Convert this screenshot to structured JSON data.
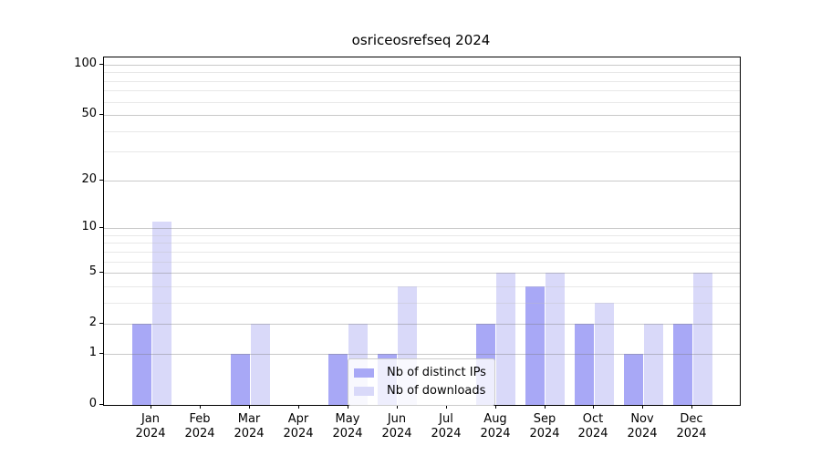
{
  "title": "osriceosrefseq 2024",
  "chart_data": {
    "type": "bar",
    "title": "osriceosrefseq 2024",
    "yscale": "log1p",
    "ylim": [
      0,
      110
    ],
    "grid": true,
    "months": [
      "Jan",
      "Feb",
      "Mar",
      "Apr",
      "May",
      "Jun",
      "Jul",
      "Aug",
      "Sep",
      "Oct",
      "Nov",
      "Dec"
    ],
    "year": "2024",
    "categories": [
      "Jan 2024",
      "Feb 2024",
      "Mar 2024",
      "Apr 2024",
      "May 2024",
      "Jun 2024",
      "Jul 2024",
      "Aug 2024",
      "Sep 2024",
      "Oct 2024",
      "Nov 2024",
      "Dec 2024"
    ],
    "series": [
      {
        "name": "Nb of distinct IPs",
        "color": "#a8a8f6",
        "values": [
          2,
          0,
          1,
          0,
          1,
          1,
          0,
          2,
          4,
          2,
          1,
          2
        ]
      },
      {
        "name": "Nb of downloads",
        "color": "#d9d9f9",
        "values": [
          11,
          0,
          2,
          0,
          2,
          4,
          0,
          5,
          5,
          3,
          2,
          5
        ]
      }
    ],
    "y_major_ticks": [
      0,
      1,
      2,
      5,
      10,
      20,
      50,
      100
    ],
    "y_minor_ticks": [
      3,
      4,
      6,
      7,
      8,
      9,
      30,
      40,
      60,
      70,
      80,
      90
    ],
    "legend_position": "lower-center"
  },
  "colors": {
    "major_grid": "#cccccc",
    "minor_grid": "#ebebeb",
    "axis": "#000000",
    "background": "#ffffff"
  }
}
